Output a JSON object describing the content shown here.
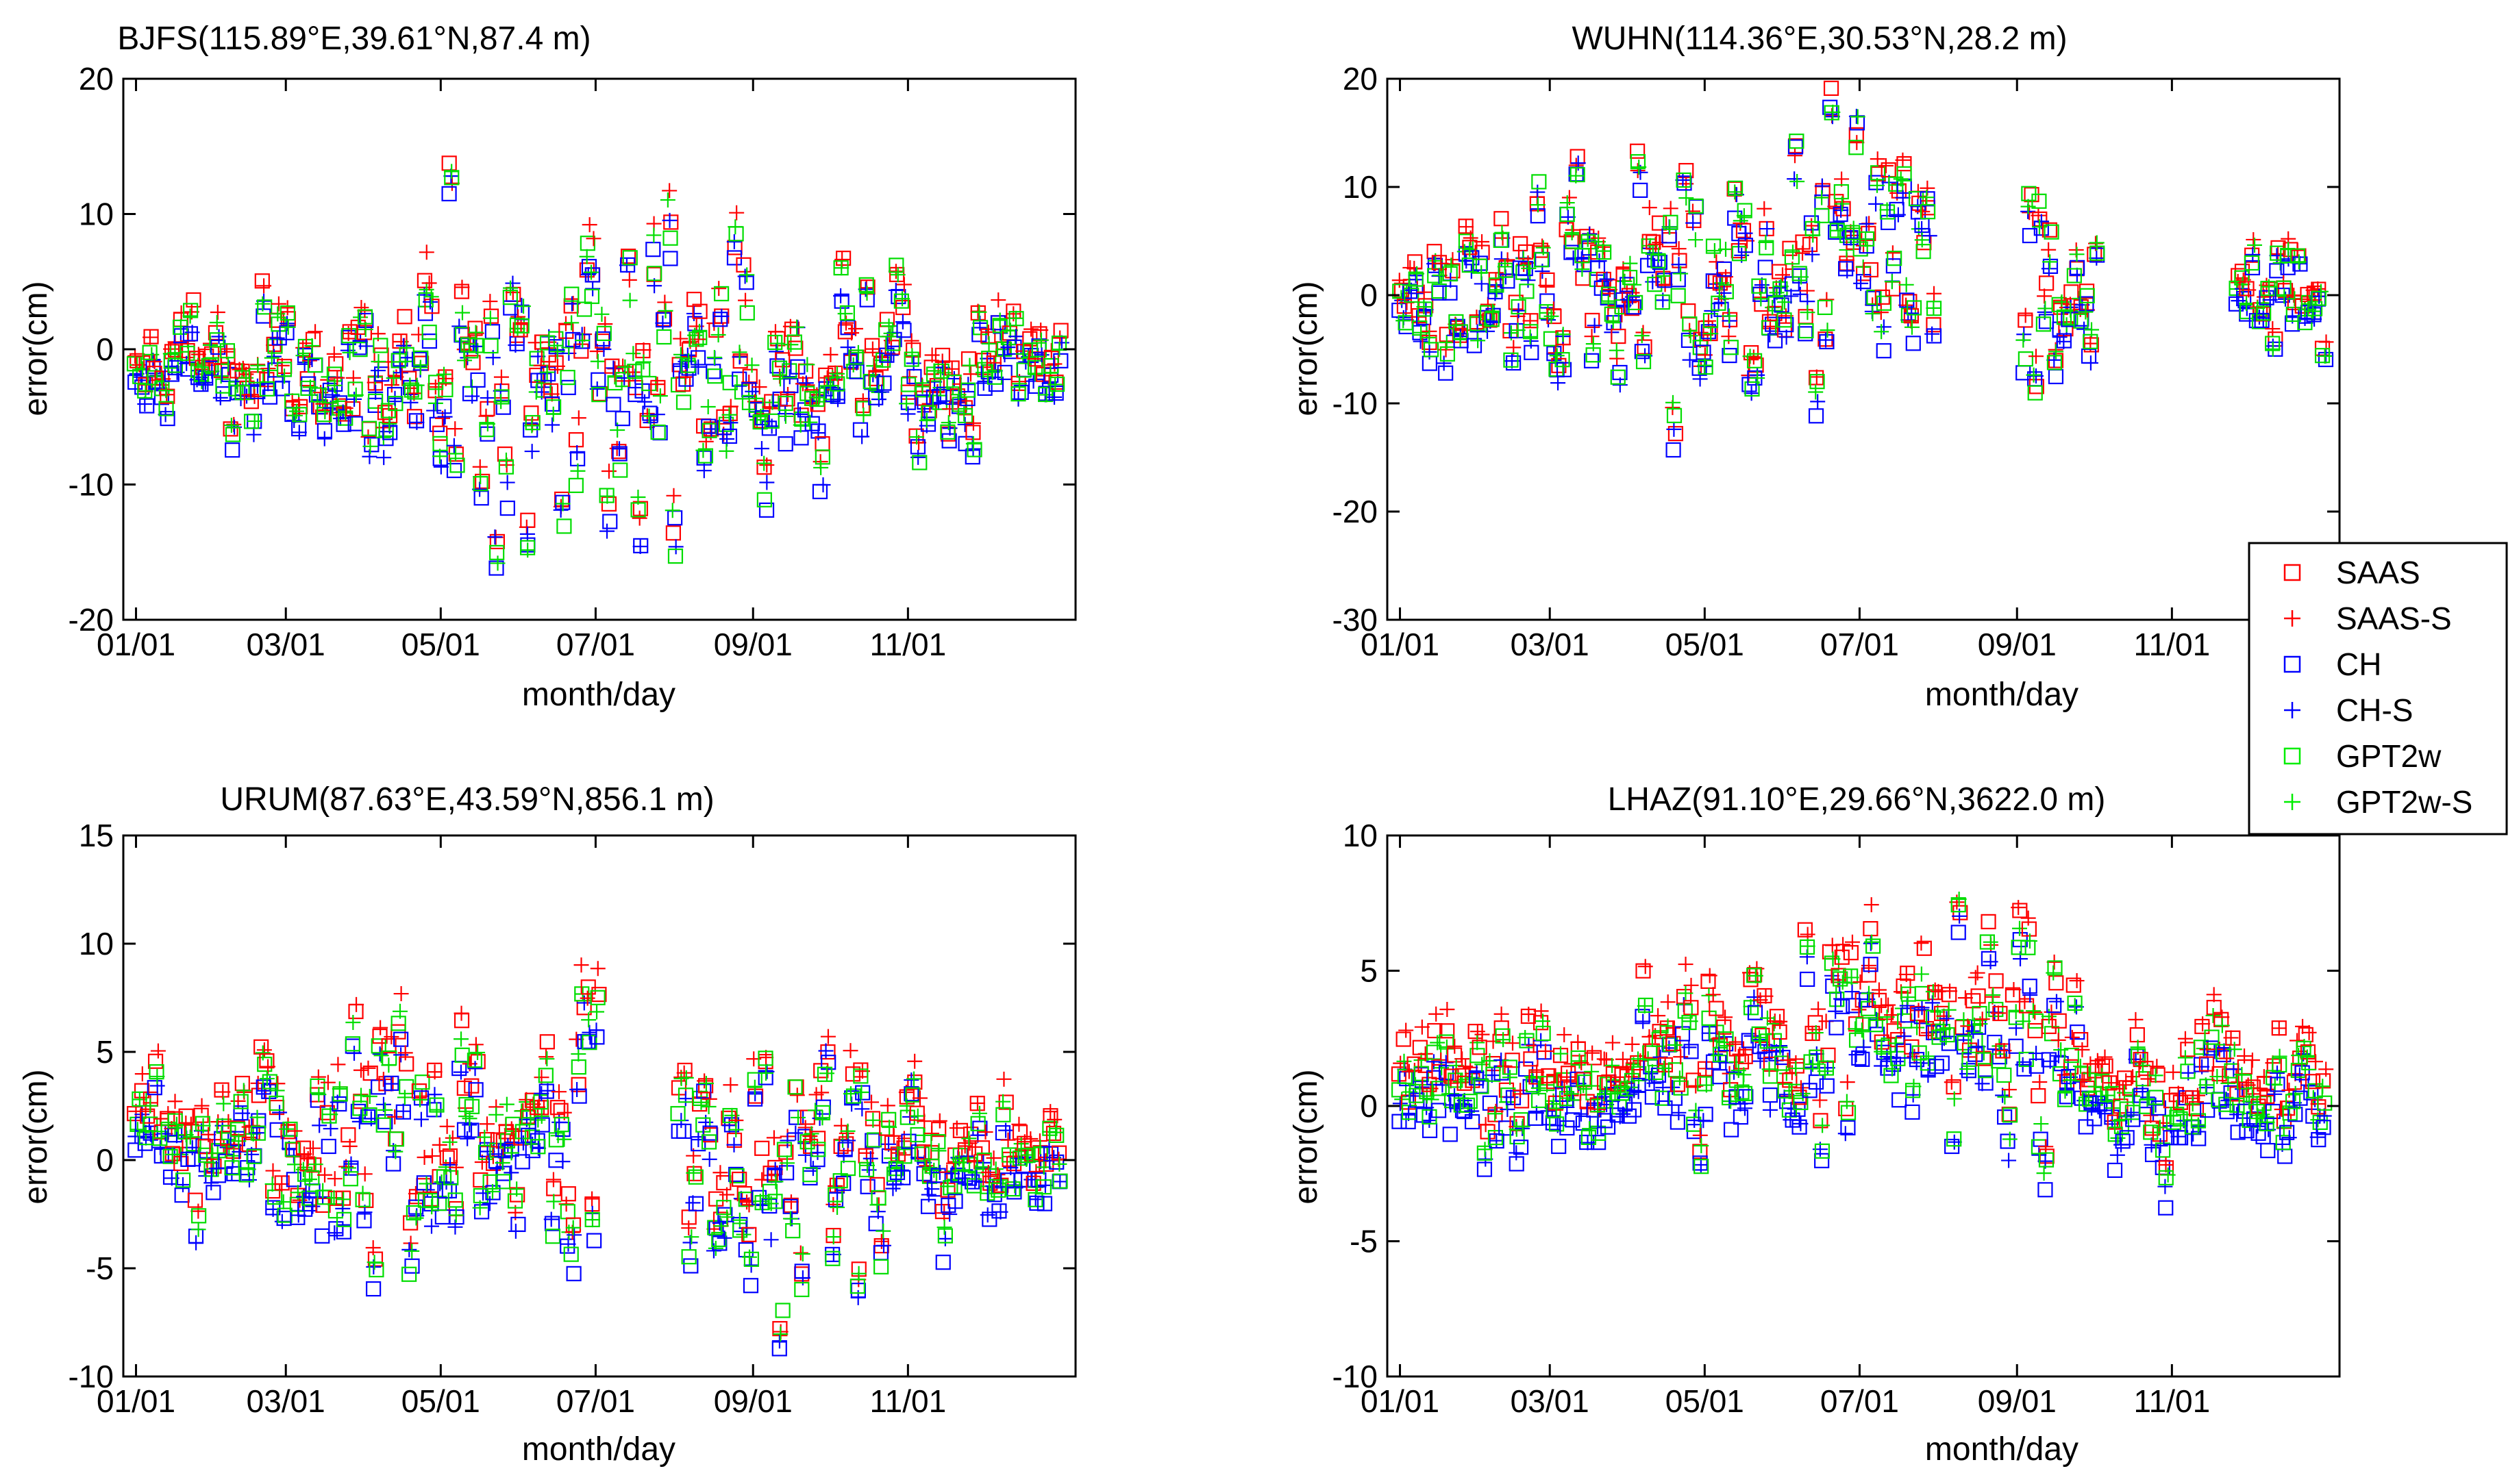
{
  "colors": {
    "SAAS": "#ff0000",
    "SAAS-S": "#ff0000",
    "CH": "#0000ff",
    "CH-S": "#0000ff",
    "GPT2w": "#00ee00",
    "GPT2w-S": "#00ee00"
  },
  "chart_data": [
    {
      "type": "scatter",
      "title": "BJFS(115.89°E,39.61°N,87.4 m)",
      "xlabel": "month/day",
      "ylabel": "error(cm)",
      "xlim": [
        -5,
        370
      ],
      "ylim": [
        -20,
        20
      ],
      "xticks": [
        0,
        59,
        120,
        181,
        243,
        304
      ],
      "xticklabels": [
        "01/01",
        "03/01",
        "05/01",
        "07/01",
        "09/01",
        "11/01"
      ],
      "yticks": [
        20,
        10,
        0,
        -10,
        -20
      ],
      "yticklabels": [
        "20",
        "10",
        "0",
        "-10",
        "-20"
      ],
      "profile": {
        "base": [
          [
            0,
            -2
          ],
          [
            60,
            -2
          ],
          [
            120,
            -1
          ],
          [
            180,
            -1
          ],
          [
            240,
            -2
          ],
          [
            300,
            -2
          ],
          [
            360,
            -1
          ]
        ],
        "amp": [
          [
            0,
            1.5
          ],
          [
            60,
            2.5
          ],
          [
            120,
            4.5
          ],
          [
            180,
            6
          ],
          [
            240,
            5
          ],
          [
            300,
            3
          ],
          [
            360,
            2
          ]
        ],
        "gaps": []
      }
    },
    {
      "type": "scatter",
      "title": "WUHN(114.36°E,30.53°N,28.2 m)",
      "xlabel": "month/day",
      "ylabel": "error(cm)",
      "xlim": [
        -5,
        370
      ],
      "ylim": [
        -30,
        20
      ],
      "xticks": [
        0,
        59,
        120,
        181,
        243,
        304
      ],
      "xticklabels": [
        "01/01",
        "03/01",
        "05/01",
        "07/01",
        "09/01",
        "11/01"
      ],
      "yticks": [
        20,
        10,
        0,
        -10,
        -20,
        -30
      ],
      "yticklabels": [
        "20",
        "10",
        "0",
        "-10",
        "-20",
        "-30"
      ],
      "profile": {
        "base": [
          [
            0,
            -1
          ],
          [
            60,
            2
          ],
          [
            120,
            1
          ],
          [
            180,
            3
          ],
          [
            240,
            0
          ],
          [
            300,
            -2
          ],
          [
            360,
            -1
          ]
        ],
        "amp": [
          [
            0,
            2.5
          ],
          [
            60,
            5
          ],
          [
            120,
            6.5
          ],
          [
            180,
            6
          ],
          [
            240,
            6
          ],
          [
            300,
            3
          ],
          [
            360,
            2
          ]
        ],
        "gaps": [
          [
            212,
            244
          ],
          [
            275,
            328
          ]
        ]
      }
    },
    {
      "type": "scatter",
      "title": "URUM(87.63°E,43.59°N,856.1 m)",
      "xlabel": "month/day",
      "ylabel": "error(cm)",
      "xlim": [
        -5,
        370
      ],
      "ylim": [
        -10,
        15
      ],
      "xticks": [
        0,
        59,
        120,
        181,
        243,
        304
      ],
      "xticklabels": [
        "01/01",
        "03/01",
        "05/01",
        "07/01",
        "09/01",
        "11/01"
      ],
      "yticks": [
        15,
        10,
        5,
        0,
        -5,
        -10
      ],
      "yticklabels": [
        "15",
        "10",
        "5",
        "0",
        "-5",
        "-10"
      ],
      "profile": {
        "base": [
          [
            0,
            1
          ],
          [
            60,
            0.5
          ],
          [
            120,
            1
          ],
          [
            180,
            1
          ],
          [
            240,
            0.5
          ],
          [
            300,
            0
          ],
          [
            360,
            0.5
          ]
        ],
        "amp": [
          [
            0,
            1.2
          ],
          [
            60,
            2
          ],
          [
            120,
            3
          ],
          [
            180,
            3
          ],
          [
            240,
            3.5
          ],
          [
            300,
            2
          ],
          [
            360,
            1.2
          ]
        ],
        "gaps": [
          [
            184,
            212
          ]
        ]
      }
    },
    {
      "type": "scatter",
      "title": "LHAZ(91.10°E,29.66°N,3622.0 m)",
      "xlabel": "month/day",
      "ylabel": "error(cm)",
      "xlim": [
        -5,
        370
      ],
      "ylim": [
        -10,
        10
      ],
      "xticks": [
        0,
        59,
        120,
        181,
        243,
        304
      ],
      "xticklabels": [
        "01/01",
        "03/01",
        "05/01",
        "07/01",
        "09/01",
        "11/01"
      ],
      "yticks": [
        10,
        5,
        0,
        -5,
        -10
      ],
      "yticklabels": [
        "10",
        "5",
        "0",
        "-5",
        "-10"
      ],
      "profile": {
        "base": [
          [
            0,
            0
          ],
          [
            60,
            0.5
          ],
          [
            120,
            1
          ],
          [
            170,
            3
          ],
          [
            240,
            2
          ],
          [
            300,
            0
          ],
          [
            360,
            0
          ]
        ],
        "amp": [
          [
            0,
            1.2
          ],
          [
            60,
            1.2
          ],
          [
            120,
            1.6
          ],
          [
            180,
            1.6
          ],
          [
            240,
            2.2
          ],
          [
            300,
            1.2
          ],
          [
            360,
            1
          ]
        ],
        "gaps": []
      }
    }
  ],
  "legend": {
    "entries": [
      {
        "label": "SAAS",
        "marker": "square",
        "color": "#ff0000"
      },
      {
        "label": "SAAS-S",
        "marker": "plus",
        "color": "#ff0000"
      },
      {
        "label": "CH",
        "marker": "square",
        "color": "#0000ff"
      },
      {
        "label": "CH-S",
        "marker": "plus",
        "color": "#0000ff"
      },
      {
        "label": "GPT2w",
        "marker": "square",
        "color": "#00ee00"
      },
      {
        "label": "GPT2w-S",
        "marker": "plus",
        "color": "#00ee00"
      }
    ]
  }
}
